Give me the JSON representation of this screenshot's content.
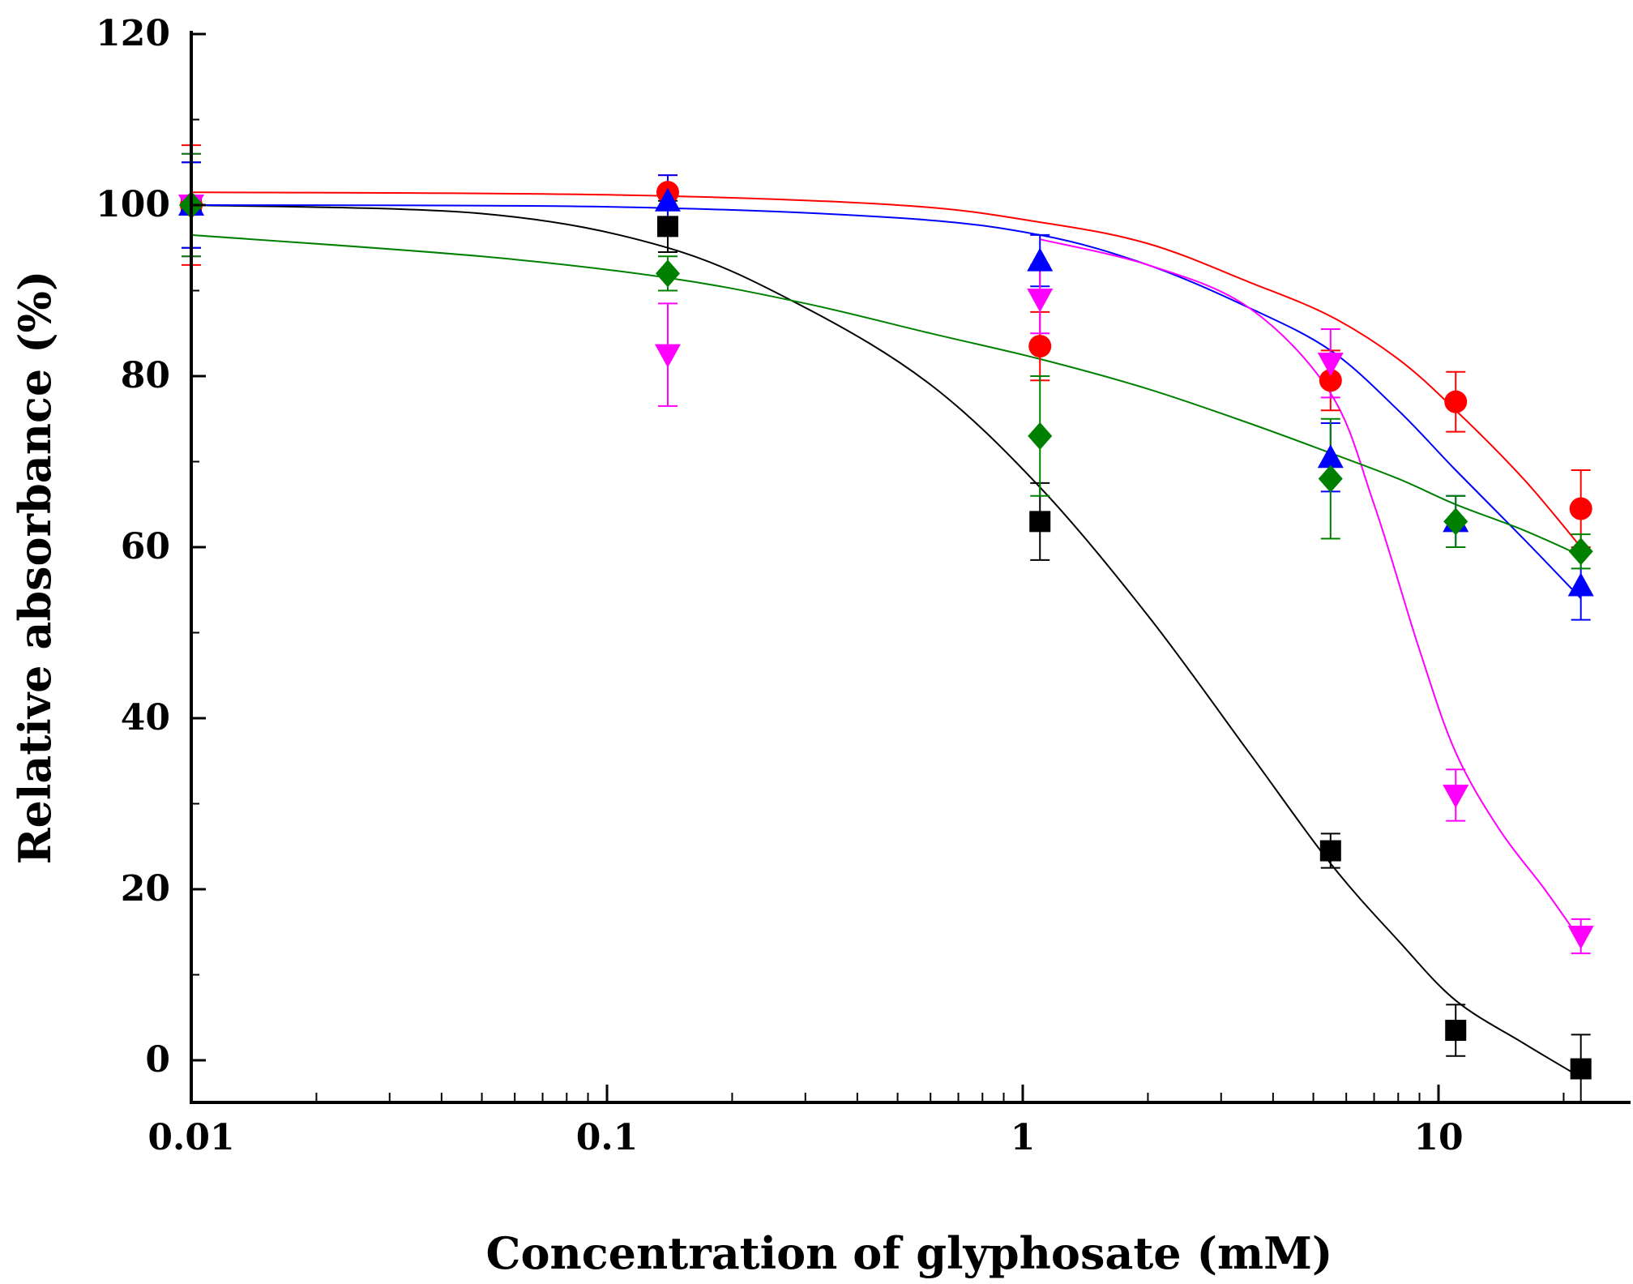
{
  "chart_data": {
    "type": "scatter",
    "title": "",
    "xlabel": "Concentration of glyphosate (mM)",
    "ylabel": "Relative absorbance (%)",
    "xscale": "log",
    "xlim": [
      0.01,
      30
    ],
    "ylim": [
      -5,
      120
    ],
    "xticks": [
      0.01,
      0.1,
      1,
      10
    ],
    "xtick_labels": [
      "0.01",
      "0.1",
      "1",
      "10"
    ],
    "yticks": [
      0,
      20,
      40,
      60,
      80,
      100,
      120
    ],
    "ytick_labels": [
      "0",
      "20",
      "40",
      "60",
      "80",
      "100",
      "120"
    ],
    "legend": "none",
    "x": [
      0.01,
      0.14,
      1.1,
      5.5,
      11,
      22
    ],
    "series": [
      {
        "name": "black",
        "color": "#000000",
        "marker": "square",
        "values": [
          100,
          97.5,
          63,
          24.5,
          3.5,
          -1
        ],
        "errors": [
          5,
          3,
          4.5,
          2,
          3,
          4
        ]
      },
      {
        "name": "red",
        "color": "#ff0000",
        "marker": "circle",
        "values": [
          100,
          101.5,
          83.5,
          79.5,
          77,
          64.5
        ],
        "errors": [
          7,
          2,
          4,
          3.5,
          3.5,
          4.5
        ]
      },
      {
        "name": "blue",
        "color": "#0000ff",
        "marker": "triangle-up",
        "values": [
          100,
          100.5,
          93.5,
          70.5,
          63,
          55.5
        ],
        "errors": [
          5,
          3,
          3,
          4,
          3,
          4
        ]
      },
      {
        "name": "magenta",
        "color": "#ff00ff",
        "marker": "triangle-down",
        "values": [
          100,
          82.5,
          89,
          81.5,
          31,
          14.5
        ],
        "errors": [
          6,
          6,
          4,
          4,
          3,
          2
        ]
      },
      {
        "name": "green",
        "color": "#008000",
        "marker": "diamond",
        "values": [
          100,
          92,
          73,
          68,
          63,
          59.5
        ],
        "errors": [
          6,
          2,
          7,
          7,
          3,
          2
        ]
      }
    ],
    "fits": [
      {
        "series": "black",
        "color": "#000000",
        "x": [
          0.01,
          0.05,
          0.14,
          0.3,
          0.6,
          1.1,
          2,
          3.5,
          5.5,
          8,
          11,
          16,
          22
        ],
        "y": [
          100,
          99,
          95,
          88,
          79,
          67,
          52,
          36,
          23,
          14,
          7,
          2,
          -2
        ]
      },
      {
        "series": "red",
        "color": "#ff0000",
        "x": [
          0.01,
          0.1,
          0.5,
          1.1,
          2,
          3.5,
          5.5,
          8,
          11,
          16,
          22
        ],
        "y": [
          101.5,
          101.2,
          100,
          98,
          95.5,
          91,
          87,
          82,
          76,
          68,
          60
        ]
      },
      {
        "series": "blue",
        "color": "#0000ff",
        "x": [
          0.01,
          0.1,
          0.5,
          1.1,
          2,
          3.5,
          5.5,
          8,
          11,
          16,
          22
        ],
        "y": [
          100,
          99.8,
          98.5,
          96.5,
          93,
          88,
          83,
          76,
          69,
          61,
          54
        ]
      },
      {
        "series": "magenta",
        "color": "#ff00ff",
        "x": [
          1.1,
          2,
          3.5,
          5.5,
          7,
          9,
          11,
          14,
          18,
          22
        ],
        "y": [
          96,
          93,
          88,
          78,
          65,
          48,
          36,
          27,
          20,
          14
        ]
      },
      {
        "series": "green",
        "color": "#008000",
        "x": [
          0.01,
          0.05,
          0.14,
          0.3,
          0.6,
          1.1,
          2,
          3.5,
          5.5,
          8,
          11,
          16,
          22
        ],
        "y": [
          96.5,
          94,
          91.5,
          88.5,
          85,
          82,
          78.5,
          74.5,
          71,
          68,
          65,
          62,
          59
        ]
      }
    ]
  }
}
